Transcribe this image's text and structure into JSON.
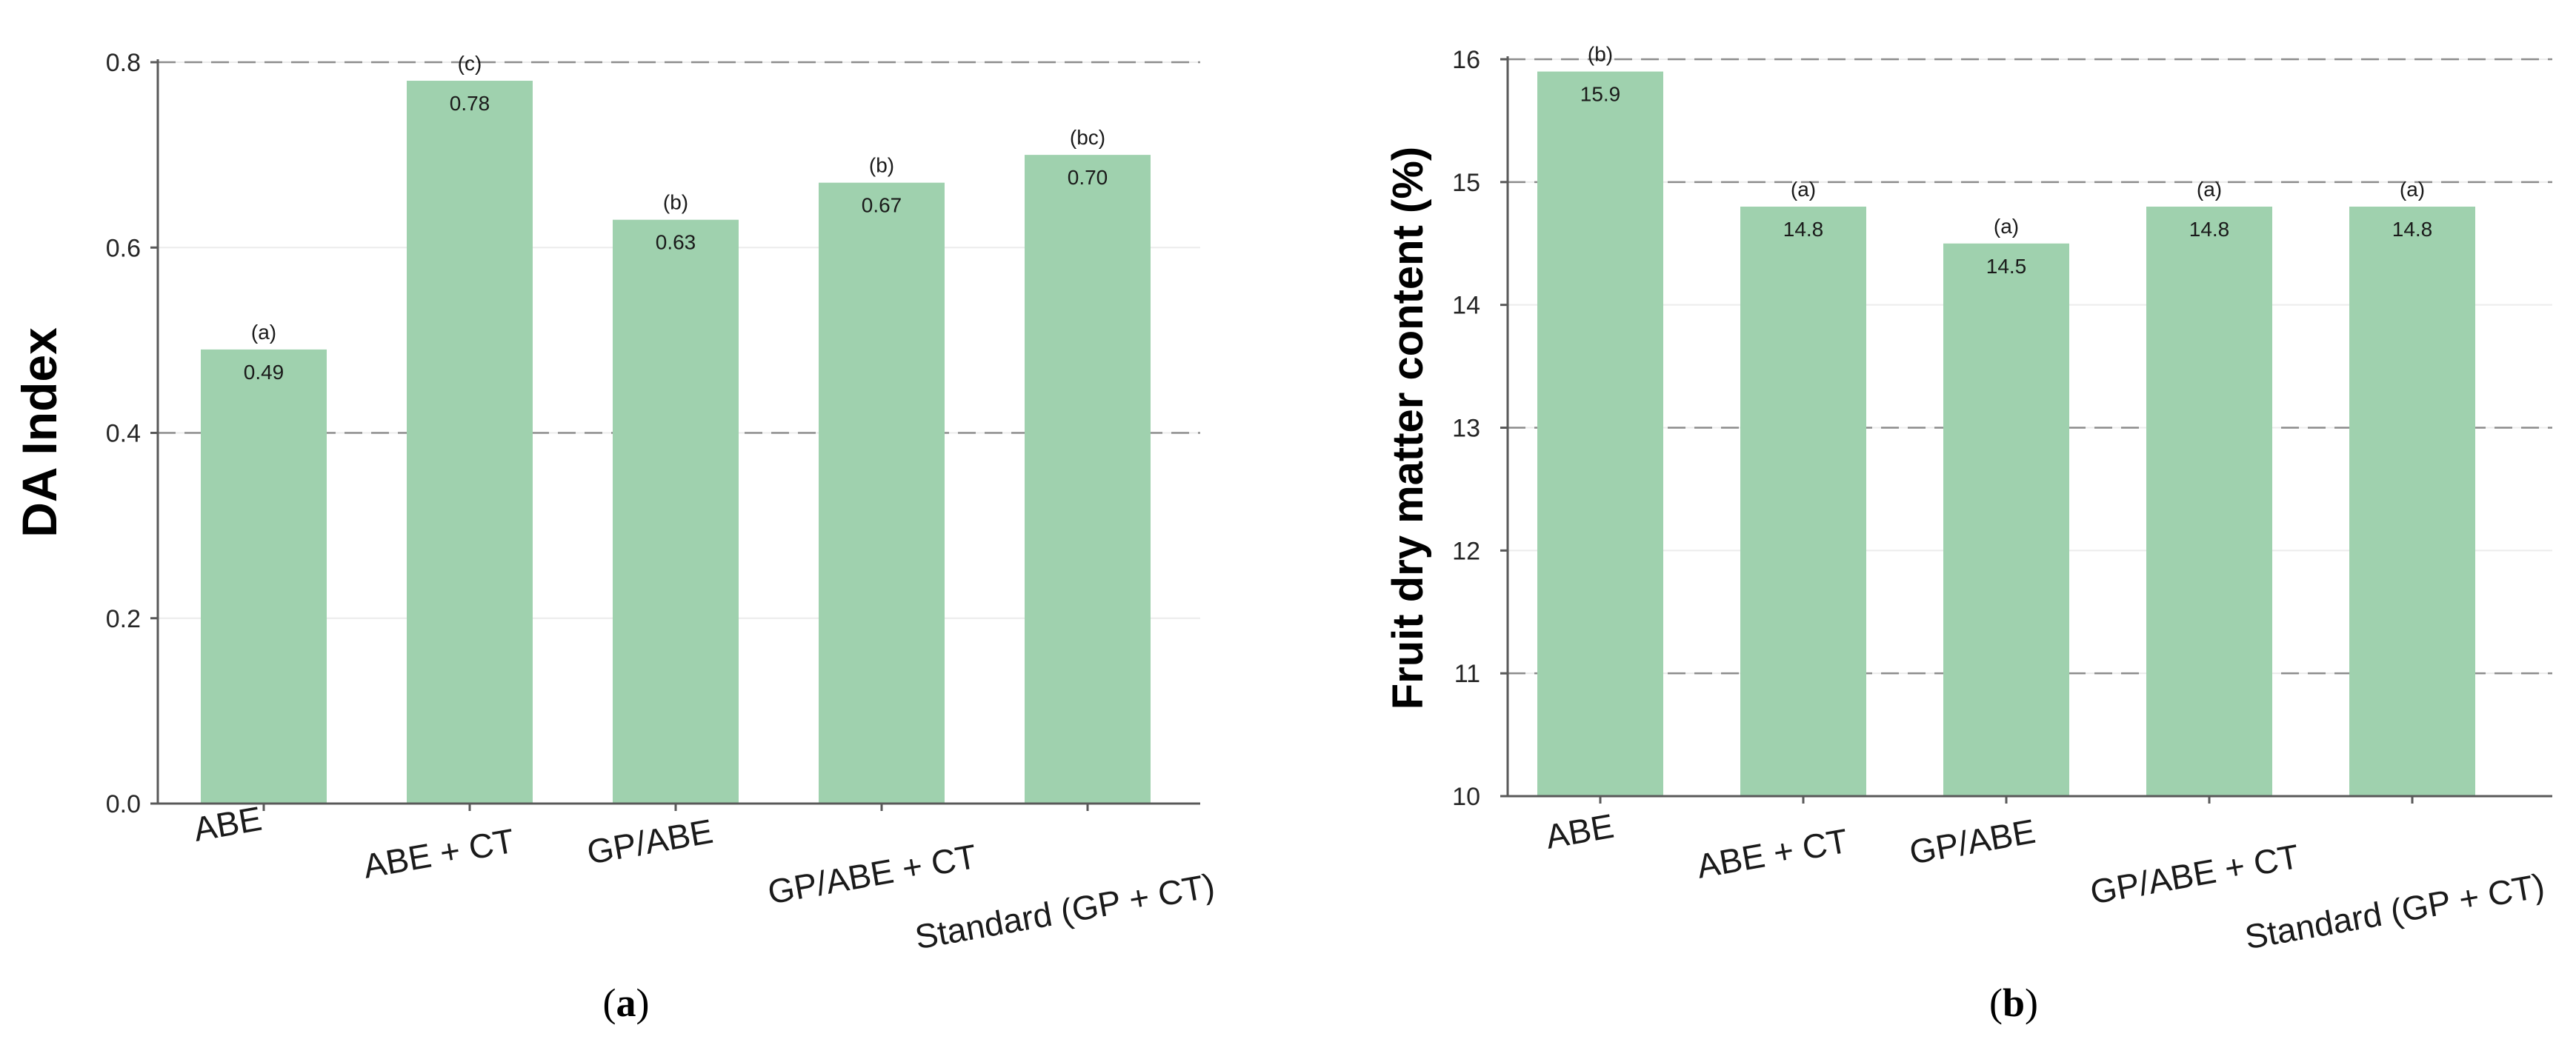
{
  "chart_data": [
    {
      "type": "bar",
      "panel_label": "a",
      "ylabel": "DA Index",
      "xlabel": "",
      "categories": [
        "ABE",
        "ABE + CT",
        "GP/ABE",
        "GP/ABE + CT",
        "Standard (GP + CT)"
      ],
      "values": [
        0.49,
        0.78,
        0.63,
        0.67,
        0.7
      ],
      "value_labels": [
        "0.49",
        "0.78",
        "0.63",
        "0.67",
        "0.70"
      ],
      "significance": [
        "(a)",
        "(c)",
        "(b)",
        "(b)",
        "(bc)"
      ],
      "ylim": [
        0.0,
        0.8
      ],
      "yticks": [
        "0.0",
        "0.2",
        "0.4",
        "0.6",
        "0.8"
      ],
      "dashed_gridlines": [
        0.4,
        0.8
      ],
      "bar_color": "#9fd1ae"
    },
    {
      "type": "bar",
      "panel_label": "b",
      "ylabel": "Fruit dry matter content (%)",
      "xlabel": "",
      "categories": [
        "ABE",
        "ABE + CT",
        "GP/ABE",
        "GP/ABE + CT",
        "Standard (GP + CT)"
      ],
      "values": [
        15.9,
        14.8,
        14.5,
        14.8,
        14.8
      ],
      "value_labels": [
        "15.9",
        "14.8",
        "14.5",
        "14.8",
        "14.8"
      ],
      "significance": [
        "(b)",
        "(a)",
        "(a)",
        "(a)",
        "(a)"
      ],
      "ylim": [
        10,
        16
      ],
      "yticks": [
        "10",
        "11",
        "12",
        "13",
        "14",
        "15",
        "16"
      ],
      "dashed_gridlines": [
        11,
        13,
        15,
        16
      ],
      "bar_color": "#9fd1ae"
    }
  ]
}
